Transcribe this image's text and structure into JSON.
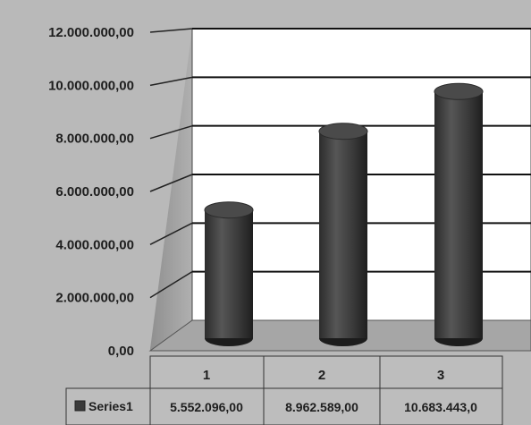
{
  "chart_data": {
    "type": "bar",
    "style": "3d-cylinder",
    "categories": [
      "1",
      "2",
      "3"
    ],
    "series": [
      {
        "name": "Series1",
        "values": [
          5552096,
          8962589,
          10683443
        ],
        "value_labels": [
          "5.552.096,00",
          "8.962.589,00",
          "10.683.443,0"
        ]
      }
    ],
    "y_ticks": [
      "0,00",
      "2.000.000,00",
      "4.000.000,00",
      "6.000.000,00",
      "8.000.000,00",
      "10.000.000,00",
      "12.000.000,00"
    ],
    "ylim": [
      0,
      12000000
    ],
    "grid": true,
    "legend": "data-table",
    "colors": {
      "bar": "#3a3a3a",
      "wall": "#ffffff",
      "side_wall": "#9c9c9c",
      "floor": "#a8a8a8",
      "background": "#b9b9b9"
    }
  }
}
